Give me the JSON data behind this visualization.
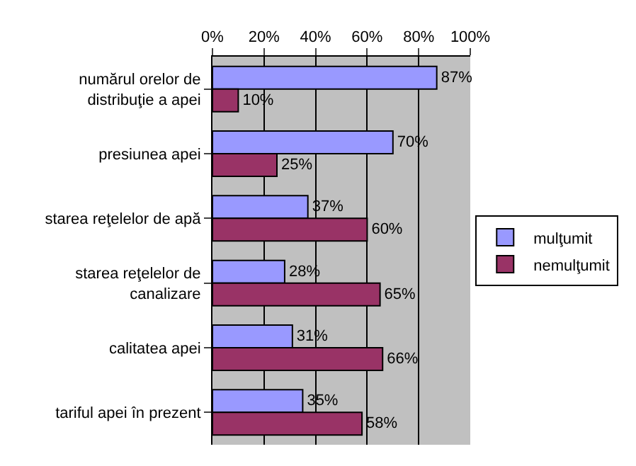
{
  "chart_data": {
    "type": "bar",
    "orientation": "horizontal",
    "categories": [
      "numărul orelor de distribuţie a apei",
      "presiunea apei",
      "starea reţelelor de apă",
      "starea reţelelor de canalizare",
      "calitatea apei",
      "tariful apei în prezent"
    ],
    "series": [
      {
        "name": "mulţumit",
        "color": "#9999ff",
        "values": [
          87,
          70,
          37,
          28,
          31,
          35
        ],
        "value_labels": [
          "87%",
          "70%",
          "37%",
          "28%",
          "31%",
          "35%"
        ]
      },
      {
        "name": "nemulţumit",
        "color": "#993366",
        "values": [
          10,
          25,
          60,
          65,
          66,
          58
        ],
        "value_labels": [
          "10%",
          "25%",
          "60%",
          "65%",
          "66%",
          "58%"
        ]
      }
    ],
    "xlim": [
      0,
      100
    ],
    "xticks": [
      {
        "value": 0,
        "label": "0%"
      },
      {
        "value": 20,
        "label": "20%"
      },
      {
        "value": 40,
        "label": "40%"
      },
      {
        "value": 60,
        "label": "60%"
      },
      {
        "value": 80,
        "label": "80%"
      },
      {
        "value": 100,
        "label": "100%"
      }
    ],
    "grid": "x",
    "legend": "right"
  }
}
